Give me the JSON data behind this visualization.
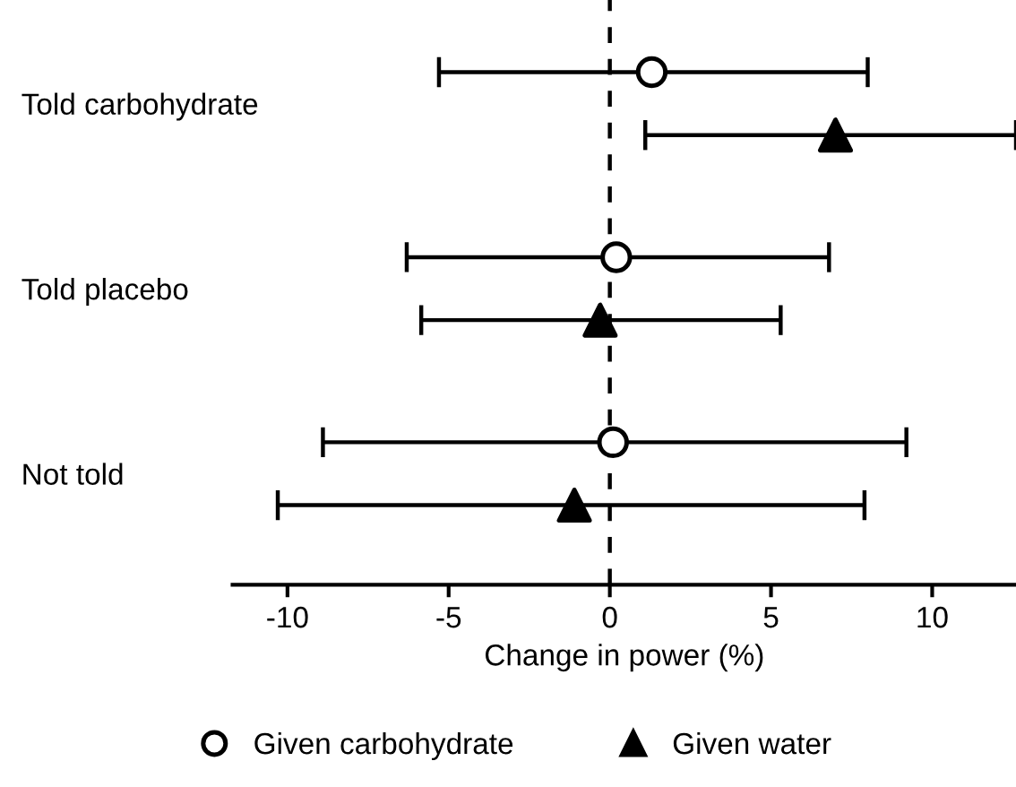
{
  "chart_data": {
    "type": "scatter",
    "orientation": "horizontal",
    "xlabel": "Change in power (%)",
    "categories": [
      "Told carbohydrate",
      "Told placebo",
      "Not told"
    ],
    "series": [
      {
        "name": "Given carbohydrate",
        "color": "#ffffff",
        "marker": "circle",
        "values": [
          1.3,
          0.2,
          0.1
        ],
        "errors": [
          [
            -5.3,
            8.0
          ],
          [
            -6.3,
            6.8
          ],
          [
            -8.9,
            9.2
          ]
        ]
      },
      {
        "name": "Given water",
        "color": "#000000",
        "marker": "triangle",
        "values": [
          7.0,
          -0.3,
          -1.1
        ],
        "errors": [
          [
            1.1,
            12.6
          ],
          [
            -5.85,
            5.3
          ],
          [
            -10.3,
            7.9
          ]
        ]
      }
    ],
    "xlim": [
      -11.7,
      12.6
    ],
    "xticks": [
      -10,
      -5,
      0,
      5,
      10
    ],
    "ref_lines": [
      {
        "axis": "x",
        "value": 0,
        "line_style": "dashed",
        "color": "#000000"
      }
    ],
    "grid": false,
    "legend": "bottom"
  }
}
